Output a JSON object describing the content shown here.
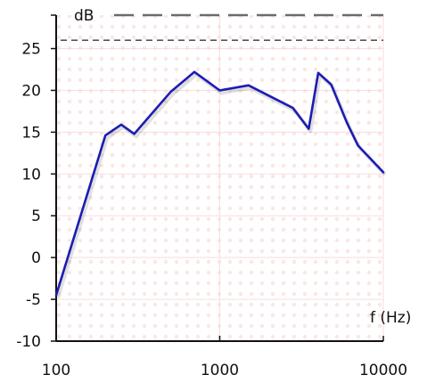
{
  "chart_data": {
    "type": "line",
    "x_scale": "log",
    "xlim": [
      100,
      10000
    ],
    "ylim": [
      -10,
      29
    ],
    "x_ticks": [
      {
        "value": 100,
        "label": "100"
      },
      {
        "value": 1000,
        "label": "1000"
      },
      {
        "value": 10000,
        "label": "10000"
      }
    ],
    "y_ticks": [
      {
        "value": -10,
        "label": "-10"
      },
      {
        "value": -5,
        "label": "-5"
      },
      {
        "value": 0,
        "label": "0"
      },
      {
        "value": 5,
        "label": "5"
      },
      {
        "value": 10,
        "label": "10"
      },
      {
        "value": 15,
        "label": "15"
      },
      {
        "value": 20,
        "label": "20"
      },
      {
        "value": 25,
        "label": "25"
      }
    ],
    "y_unit": "dB",
    "x_unit": "f (Hz)",
    "reference_lines": [
      {
        "y": 29,
        "style": "long-dash"
      },
      {
        "y": 26,
        "style": "short-dash"
      }
    ],
    "series": [
      {
        "color": "#1c1cb4",
        "points": [
          [
            100,
            -4.5
          ],
          [
            200,
            14.6
          ],
          [
            250,
            15.9
          ],
          [
            300,
            14.8
          ],
          [
            500,
            19.8
          ],
          [
            700,
            22.2
          ],
          [
            1000,
            20.0
          ],
          [
            1500,
            20.6
          ],
          [
            2800,
            17.9
          ],
          [
            3500,
            15.4
          ],
          [
            4000,
            22.1
          ],
          [
            4800,
            20.7
          ],
          [
            6000,
            16.1
          ],
          [
            7000,
            13.4
          ],
          [
            10000,
            10.2
          ]
        ]
      }
    ],
    "grid": true,
    "grid_color": "#f8dede"
  }
}
